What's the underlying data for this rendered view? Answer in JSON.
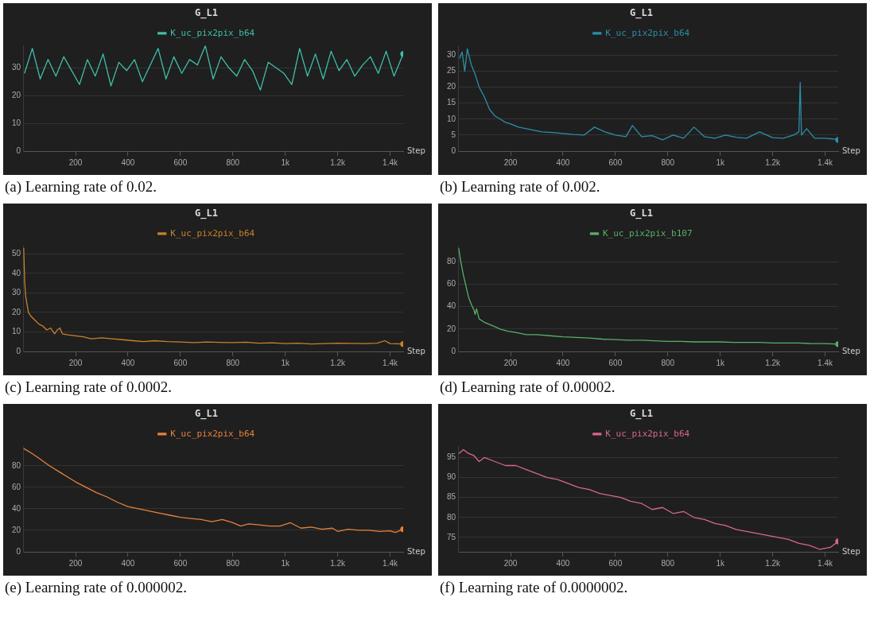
{
  "chart_data": [
    {
      "type": "line",
      "title": "G_L1",
      "xlabel": "Step",
      "legend": "top",
      "grid": "y",
      "annotations": [
        "(a) Learning rate of 0.02."
      ],
      "xlim": [
        0,
        1450
      ],
      "ylim": [
        0,
        38
      ],
      "xticks": [
        200,
        400,
        600,
        800,
        {
          "value": 1000,
          "label": "1k"
        },
        {
          "value": 1200,
          "label": "1.2k"
        },
        {
          "value": 1400,
          "label": "1.4k"
        }
      ],
      "yticks": [
        0,
        10,
        20,
        30
      ],
      "series": [
        {
          "name": "K_uc_pix2pix_b64",
          "color": "#3fbfa8",
          "x": [
            5,
            35,
            65,
            95,
            125,
            155,
            185,
            215,
            245,
            275,
            305,
            335,
            365,
            395,
            425,
            455,
            485,
            515,
            545,
            575,
            605,
            635,
            665,
            695,
            725,
            755,
            785,
            815,
            845,
            875,
            905,
            935,
            965,
            995,
            1025,
            1055,
            1085,
            1115,
            1145,
            1175,
            1205,
            1235,
            1265,
            1295,
            1325,
            1355,
            1385,
            1415,
            1450
          ],
          "values": [
            28,
            37,
            26,
            33,
            27,
            34,
            29,
            24,
            33,
            27,
            35,
            23.5,
            32,
            29,
            33,
            25,
            31,
            37,
            26,
            34,
            28,
            33,
            31,
            38,
            26,
            34,
            30,
            27,
            33,
            29,
            22,
            32,
            30,
            28,
            24,
            37,
            27,
            35,
            26,
            36,
            29,
            33,
            27,
            31,
            34,
            28,
            36,
            27,
            35
          ]
        }
      ]
    },
    {
      "type": "line",
      "title": "G_L1",
      "xlabel": "Step",
      "legend": "top",
      "grid": "y",
      "annotations": [
        "(b) Learning rate of 0.002."
      ],
      "xlim": [
        0,
        1450
      ],
      "ylim": [
        0,
        33
      ],
      "xticks": [
        200,
        400,
        600,
        800,
        {
          "value": 1000,
          "label": "1k"
        },
        {
          "value": 1200,
          "label": "1.2k"
        },
        {
          "value": 1400,
          "label": "1.4k"
        }
      ],
      "yticks": [
        0,
        5,
        10,
        15,
        20,
        25,
        30
      ],
      "series": [
        {
          "name": "K_uc_pix2pix_b64",
          "color": "#2a8fa8",
          "x": [
            5,
            15,
            25,
            35,
            50,
            65,
            80,
            100,
            120,
            140,
            160,
            180,
            200,
            230,
            260,
            290,
            320,
            360,
            400,
            440,
            480,
            520,
            560,
            600,
            640,
            665,
            700,
            740,
            780,
            820,
            860,
            900,
            940,
            980,
            1020,
            1060,
            1100,
            1150,
            1200,
            1240,
            1280,
            1300,
            1305,
            1310,
            1330,
            1360,
            1400,
            1430,
            1450
          ],
          "values": [
            29,
            31,
            25,
            32,
            27,
            24,
            20,
            17,
            13,
            11,
            10,
            9,
            8.5,
            7.5,
            7,
            6.5,
            6,
            5.8,
            5.5,
            5.2,
            5,
            7.5,
            6,
            5,
            4.5,
            8,
            4.5,
            4.8,
            3.5,
            5,
            4,
            7.5,
            4.5,
            4,
            5,
            4.3,
            4,
            6,
            4.2,
            4,
            5,
            6,
            21.5,
            5,
            7,
            4,
            4,
            3.8,
            3.5
          ]
        }
      ]
    },
    {
      "type": "line",
      "title": "G_L1",
      "xlabel": "Step",
      "legend": "top",
      "grid": "y",
      "annotations": [
        "(c) Learning rate of 0.0002."
      ],
      "xlim": [
        0,
        1450
      ],
      "ylim": [
        0,
        54
      ],
      "xticks": [
        200,
        400,
        600,
        800,
        {
          "value": 1000,
          "label": "1k"
        },
        {
          "value": 1200,
          "label": "1.2k"
        },
        {
          "value": 1400,
          "label": "1.4k"
        }
      ],
      "yticks": [
        0,
        10,
        20,
        30,
        40,
        50
      ],
      "series": [
        {
          "name": "K_uc_pix2pix_b64",
          "color": "#c8822a",
          "x": [
            2,
            6,
            10,
            15,
            20,
            30,
            45,
            60,
            75,
            90,
            105,
            120,
            130,
            140,
            150,
            170,
            200,
            230,
            260,
            300,
            340,
            380,
            420,
            460,
            500,
            550,
            600,
            650,
            700,
            750,
            800,
            850,
            900,
            950,
            1000,
            1050,
            1100,
            1150,
            1200,
            1250,
            1300,
            1350,
            1380,
            1400,
            1450
          ],
          "values": [
            53,
            35,
            28,
            24,
            20,
            18,
            16,
            14,
            13,
            11,
            12,
            9,
            11,
            12,
            9,
            8.5,
            8,
            7.5,
            6.5,
            7,
            6.5,
            6,
            5.5,
            5,
            5.5,
            5,
            4.8,
            4.5,
            4.8,
            4.6,
            4.5,
            4.7,
            4.2,
            4.4,
            4,
            4.2,
            3.8,
            4,
            4.2,
            4.1,
            4,
            4.2,
            5.5,
            4,
            3.8
          ]
        }
      ]
    },
    {
      "type": "line",
      "title": "G_L1",
      "xlabel": "Step",
      "legend": "top",
      "grid": "y",
      "annotations": [
        "(d) Learning rate of 0.00002."
      ],
      "xlim": [
        0,
        1450
      ],
      "ylim": [
        0,
        94
      ],
      "xticks": [
        200,
        400,
        600,
        800,
        {
          "value": 1000,
          "label": "1k"
        },
        {
          "value": 1200,
          "label": "1.2k"
        },
        {
          "value": 1400,
          "label": "1.4k"
        }
      ],
      "yticks": [
        0,
        20,
        40,
        60,
        80
      ],
      "series": [
        {
          "name": "K_uc_pix2pix_b107",
          "color": "#56b06a",
          "x": [
            2,
            10,
            20,
            30,
            40,
            50,
            60,
            65,
            70,
            80,
            100,
            120,
            140,
            160,
            190,
            220,
            260,
            300,
            350,
            400,
            450,
            500,
            550,
            600,
            650,
            700,
            750,
            800,
            850,
            900,
            950,
            1000,
            1050,
            1100,
            1150,
            1200,
            1250,
            1300,
            1350,
            1400,
            1450
          ],
          "values": [
            92,
            80,
            68,
            58,
            48,
            42,
            37,
            33,
            38,
            29,
            26,
            24,
            22,
            20,
            18,
            17,
            15,
            15,
            14,
            13,
            12.5,
            12,
            11,
            10.5,
            10,
            10,
            9.5,
            9,
            9,
            8.5,
            8.5,
            8.5,
            8,
            8,
            8,
            7.5,
            7.5,
            7.5,
            7,
            7,
            6.5
          ]
        }
      ]
    },
    {
      "type": "line",
      "title": "G_L1",
      "xlabel": "Step",
      "legend": "top",
      "grid": "y",
      "annotations": [
        "(e) Learning rate of 0.000002."
      ],
      "xlim": [
        0,
        1450
      ],
      "ylim": [
        0,
        98
      ],
      "xticks": [
        200,
        400,
        600,
        800,
        {
          "value": 1000,
          "label": "1k"
        },
        {
          "value": 1200,
          "label": "1.2k"
        },
        {
          "value": 1400,
          "label": "1.4k"
        }
      ],
      "yticks": [
        0,
        20,
        40,
        60,
        80
      ],
      "series": [
        {
          "name": "K_uc_pix2pix_b64",
          "color": "#e8803c",
          "x": [
            2,
            30,
            60,
            100,
            140,
            180,
            200,
            240,
            280,
            320,
            360,
            400,
            440,
            480,
            520,
            560,
            600,
            640,
            680,
            720,
            760,
            800,
            830,
            860,
            900,
            940,
            980,
            1020,
            1060,
            1100,
            1140,
            1180,
            1200,
            1240,
            1280,
            1320,
            1360,
            1400,
            1420,
            1450
          ],
          "values": [
            96,
            92,
            87,
            80,
            74,
            68,
            65,
            60,
            55,
            51,
            46,
            42,
            40,
            38,
            36,
            34,
            32,
            31,
            30,
            28,
            30,
            27,
            24,
            26,
            25,
            24,
            24,
            27,
            22,
            23,
            21,
            22,
            19,
            21,
            20,
            20,
            19,
            19.5,
            18,
            21
          ]
        }
      ]
    },
    {
      "type": "line",
      "title": "G_L1",
      "xlabel": "Step",
      "legend": "top",
      "grid": "y",
      "annotations": [
        "(f) Learning rate of 0.0000002."
      ],
      "xlim": [
        0,
        1450
      ],
      "ylim": [
        71.4,
        97.8
      ],
      "xticks": [
        200,
        400,
        600,
        800,
        {
          "value": 1000,
          "label": "1k"
        },
        {
          "value": 1200,
          "label": "1.2k"
        },
        {
          "value": 1400,
          "label": "1.4k"
        }
      ],
      "yticks": [
        75,
        80,
        85,
        90,
        95
      ],
      "series": [
        {
          "name": "K_uc_pix2pix_b64",
          "color": "#d9668f",
          "x": [
            2,
            20,
            40,
            60,
            80,
            100,
            140,
            180,
            220,
            260,
            300,
            340,
            380,
            420,
            460,
            500,
            540,
            580,
            620,
            660,
            700,
            740,
            780,
            820,
            860,
            900,
            940,
            980,
            1020,
            1060,
            1100,
            1140,
            1180,
            1220,
            1260,
            1300,
            1340,
            1380,
            1420,
            1450
          ],
          "values": [
            96,
            97,
            96,
            95.5,
            94,
            95,
            94,
            93,
            93,
            92,
            91,
            90,
            89.5,
            88.5,
            87.5,
            87,
            86,
            85.5,
            85,
            84,
            83.5,
            82,
            82.5,
            81,
            81.5,
            80,
            79.5,
            78.5,
            78,
            77,
            76.5,
            76,
            75.5,
            75,
            74.5,
            73.5,
            73,
            72,
            72.5,
            74
          ]
        }
      ]
    }
  ]
}
